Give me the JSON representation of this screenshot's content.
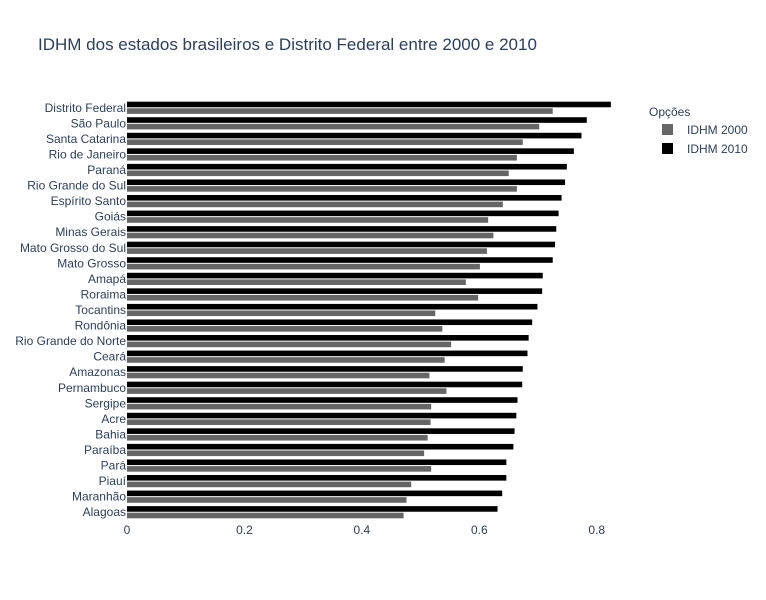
{
  "chart_data": {
    "type": "bar",
    "orientation": "horizontal",
    "title": "IDHM dos estados brasileiros e Distrito Federal entre 2000 e 2010",
    "xlabel": "",
    "ylabel": "",
    "xlim": [
      0,
      0.86
    ],
    "x_ticks": [
      "0",
      "0.2",
      "0.4",
      "0.6",
      "0.8"
    ],
    "x_tick_values": [
      0,
      0.2,
      0.4,
      0.6,
      0.8
    ],
    "grid": false,
    "legend": {
      "title": "Opções",
      "placement": "top-right"
    },
    "categories": [
      "Distrito Federal",
      "São Paulo",
      "Santa Catarina",
      "Rio de Janeiro",
      "Paraná",
      "Rio Grande do Sul",
      "Espírito Santo",
      "Goiás",
      "Minas Gerais",
      "Mato Grosso do Sul",
      "Mato Grosso",
      "Amapá",
      "Roraima",
      "Tocantins",
      "Rondônia",
      "Rio Grande do Norte",
      "Ceará",
      "Amazonas",
      "Pernambuco",
      "Sergipe",
      "Acre",
      "Bahia",
      "Paraíba",
      "Pará",
      "Piauí",
      "Maranhão",
      "Alagoas"
    ],
    "series": [
      {
        "name": "IDHM 2010",
        "color": "#000000",
        "values": [
          0.824,
          0.783,
          0.774,
          0.761,
          0.749,
          0.746,
          0.74,
          0.735,
          0.731,
          0.729,
          0.725,
          0.708,
          0.707,
          0.699,
          0.69,
          0.684,
          0.682,
          0.674,
          0.673,
          0.665,
          0.663,
          0.66,
          0.658,
          0.646,
          0.646,
          0.639,
          0.631
        ]
      },
      {
        "name": "IDHM 2000",
        "color": "#666666",
        "values": [
          0.725,
          0.702,
          0.674,
          0.664,
          0.65,
          0.664,
          0.64,
          0.615,
          0.624,
          0.613,
          0.601,
          0.577,
          0.598,
          0.525,
          0.537,
          0.552,
          0.541,
          0.515,
          0.544,
          0.518,
          0.517,
          0.512,
          0.506,
          0.518,
          0.484,
          0.476,
          0.471
        ]
      }
    ]
  }
}
